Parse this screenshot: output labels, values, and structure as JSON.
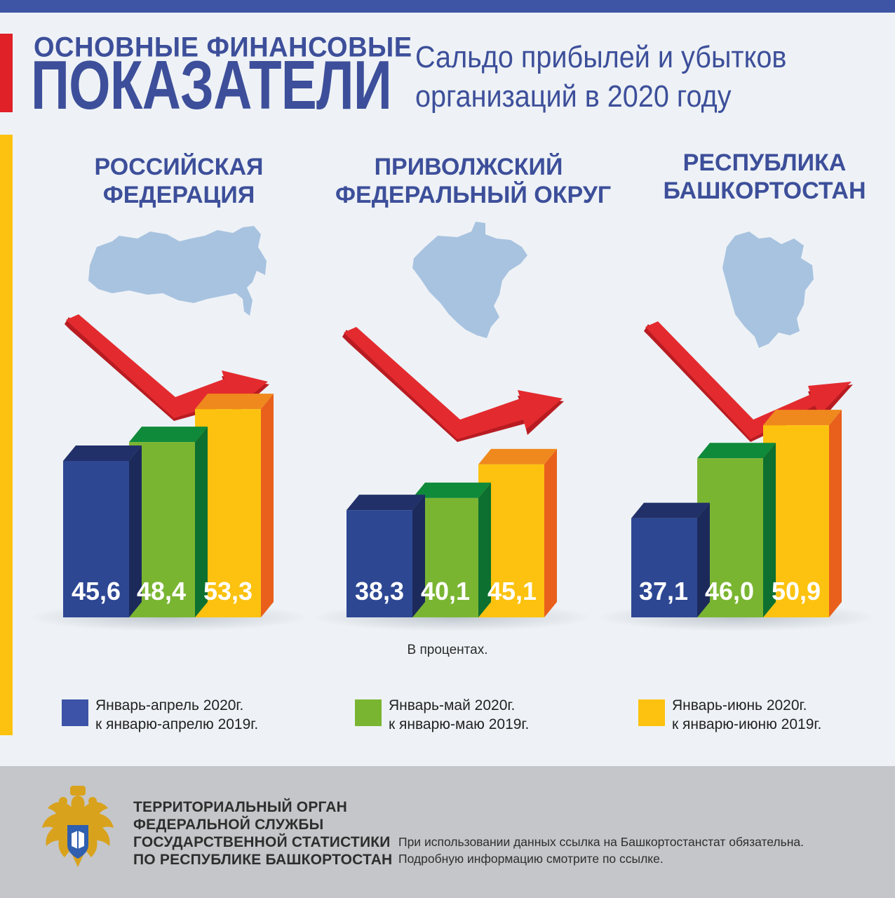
{
  "header": {
    "title_line1": "ОСНОВНЫЕ ФИНАНСОВЫЕ",
    "title_line2": "ПОКАЗАТЕЛИ",
    "subtitle_line1": "Сальдо прибылей и убытков",
    "subtitle_line2": "организаций в 2020 году"
  },
  "regions": [
    {
      "line1": "РОССИЙСКАЯ",
      "line2": "ФЕДЕРАЦИЯ"
    },
    {
      "line1": "ПРИВОЛЖСКИЙ",
      "line2": "ФЕДЕРАЛЬНЫЙ ОКРУГ"
    },
    {
      "line1": "РЕСПУБЛИКА",
      "line2": "БАШКОРТОСТАН"
    }
  ],
  "chart_data": {
    "type": "bar",
    "title": "Сальдо прибылей и убытков организаций в 2020 году",
    "unit_note": "В процентах.",
    "categories": [
      "РОССИЙСКАЯ ФЕДЕРАЦИЯ",
      "ПРИВОЛЖСКИЙ ФЕДЕРАЛЬНЫЙ ОКРУГ",
      "РЕСПУБЛИКА БАШКОРТОСТАН"
    ],
    "series": [
      {
        "name": "Январь-апрель 2020г. к январю-апрелю 2019г.",
        "values": [
          45.6,
          38.3,
          37.1
        ],
        "labels": [
          "45,6",
          "38,3",
          "37,1"
        ]
      },
      {
        "name": "Январь-май 2020г. к январю-маю 2019г.",
        "values": [
          48.4,
          40.1,
          46.0
        ],
        "labels": [
          "48,4",
          "40,1",
          "46,0"
        ]
      },
      {
        "name": "Январь-июнь 2020г. к январю-июню 2019г.",
        "values": [
          53.3,
          45.1,
          50.9
        ],
        "labels": [
          "53,3",
          "45,1",
          "50,9"
        ]
      }
    ],
    "colors": [
      {
        "front": "#2d4793",
        "top": "#22306a",
        "side": "#1b2a5a"
      },
      {
        "front": "#7ab532",
        "top": "#0f8a3a",
        "side": "#0d7030"
      },
      {
        "front": "#fcc20f",
        "top": "#f0891d",
        "side": "#e8601c"
      }
    ],
    "legend": [
      {
        "line1": "Январь-апрель 2020г.",
        "line2": "к январю-апрелю 2019г."
      },
      {
        "line1": "Январь-май 2020г.",
        "line2": "к январю-маю 2019г."
      },
      {
        "line1": "Январь-июнь 2020г.",
        "line2": "к январю-июню 2019г."
      }
    ]
  },
  "footer": {
    "org_line1": "ТЕРРИТОРИАЛЬНЫЙ ОРГАН",
    "org_line2": "ФЕДЕРАЛЬНОЙ СЛУЖБЫ",
    "org_line3": "ГОСУДАРСТВЕННОЙ СТАТИСТИКИ",
    "org_line4": "ПО РЕСПУБЛИКЕ БАШКОРТОСТАН",
    "note_line1": "При использовании данных ссылка на Башкортостанстат обязательна.",
    "note_line2": "Подробную информацию смотрите по ссылке.",
    "emblem_icon": "double-headed-eagle-emblem-icon"
  }
}
